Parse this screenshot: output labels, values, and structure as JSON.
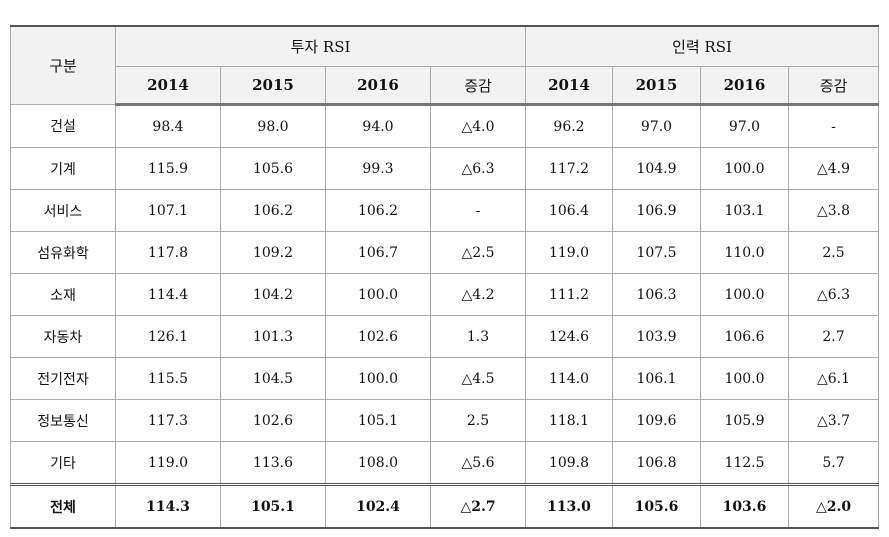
{
  "table": {
    "corner": "구분",
    "groups": [
      "투자 RSI",
      "인력 RSI"
    ],
    "columns": [
      "2014",
      "2015",
      "2016",
      "증감",
      "2014",
      "2015",
      "2016",
      "증감"
    ],
    "rows": [
      {
        "label": "건설",
        "cells": [
          "98.4",
          "98.0",
          "94.0",
          "△4.0",
          "96.2",
          "97.0",
          "97.0",
          "-"
        ]
      },
      {
        "label": "기계",
        "cells": [
          "115.9",
          "105.6",
          "99.3",
          "△6.3",
          "117.2",
          "104.9",
          "100.0",
          "△4.9"
        ]
      },
      {
        "label": "서비스",
        "cells": [
          "107.1",
          "106.2",
          "106.2",
          "-",
          "106.4",
          "106.9",
          "103.1",
          "△3.8"
        ]
      },
      {
        "label": "섬유화학",
        "cells": [
          "117.8",
          "109.2",
          "106.7",
          "△2.5",
          "119.0",
          "107.5",
          "110.0",
          "2.5"
        ]
      },
      {
        "label": "소재",
        "cells": [
          "114.4",
          "104.2",
          "100.0",
          "△4.2",
          "111.2",
          "106.3",
          "100.0",
          "△6.3"
        ]
      },
      {
        "label": "자동차",
        "cells": [
          "126.1",
          "101.3",
          "102.6",
          "1.3",
          "124.6",
          "103.9",
          "106.6",
          "2.7"
        ]
      },
      {
        "label": "전기전자",
        "cells": [
          "115.5",
          "104.5",
          "100.0",
          "△4.5",
          "114.0",
          "106.1",
          "100.0",
          "△6.1"
        ]
      },
      {
        "label": "정보통신",
        "cells": [
          "117.3",
          "102.6",
          "105.1",
          "2.5",
          "118.1",
          "109.6",
          "105.9",
          "△3.7"
        ]
      },
      {
        "label": "기타",
        "cells": [
          "119.0",
          "113.6",
          "108.0",
          "△5.6",
          "109.8",
          "106.8",
          "112.5",
          "5.7"
        ]
      }
    ],
    "total": {
      "label": "전체",
      "cells": [
        "114.3",
        "105.1",
        "102.4",
        "△2.7",
        "113.0",
        "105.6",
        "103.6",
        "△2.0"
      ]
    }
  }
}
